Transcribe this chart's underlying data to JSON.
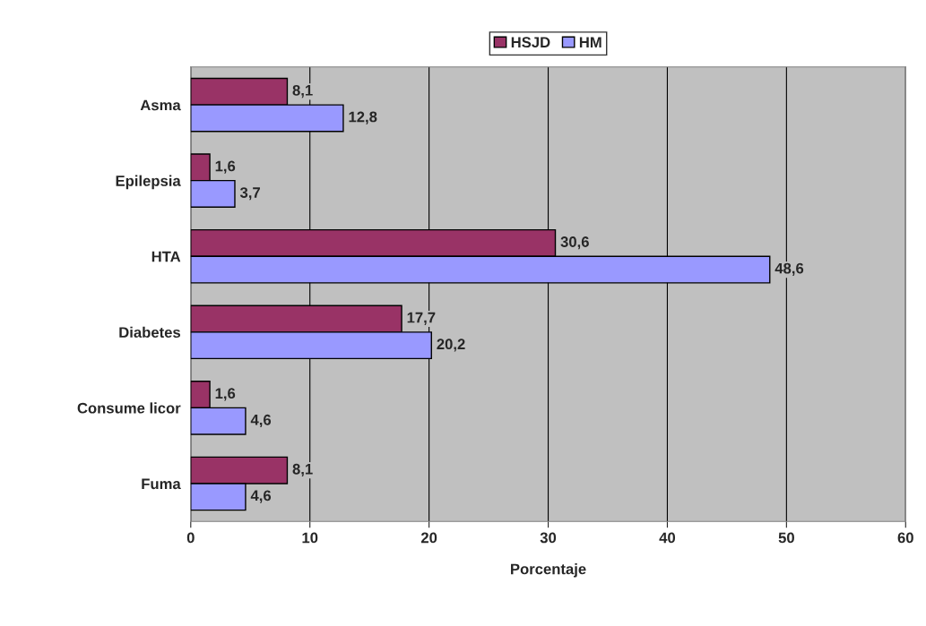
{
  "chart_data": {
    "type": "bar",
    "orientation": "horizontal",
    "xlabel": "Porcentaje",
    "categories": [
      "Asma",
      "Epilepsia",
      "HTA",
      "Diabetes",
      "Consume licor",
      "Fuma"
    ],
    "series": [
      {
        "name": "HSJD",
        "color": "#993366",
        "values": [
          8.1,
          1.6,
          30.6,
          17.7,
          1.6,
          8.1
        ],
        "value_labels": [
          "8,1",
          "1,6",
          "30,6",
          "17,7",
          "1,6",
          "8,1"
        ]
      },
      {
        "name": "HM",
        "color": "#9999ff",
        "values": [
          12.8,
          3.7,
          48.6,
          20.2,
          4.6,
          4.6
        ],
        "value_labels": [
          "12,8",
          "3,7",
          "48,6",
          "20,2",
          "4,6",
          "4,6"
        ]
      }
    ],
    "xlim": [
      0,
      60
    ],
    "xticks": [
      0,
      10,
      20,
      30,
      40,
      50,
      60
    ],
    "grid": "x",
    "legend": "top"
  }
}
